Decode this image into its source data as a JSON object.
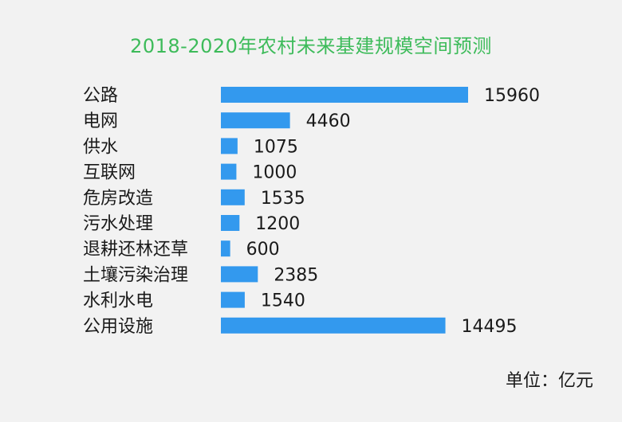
{
  "chart_data": {
    "type": "bar",
    "orientation": "horizontal",
    "title": "2018-2020年农村未来基建规模空间预测",
    "unit_note": "单位：亿元",
    "categories": [
      "公路",
      "电网",
      "供水",
      "互联网",
      "危房改造",
      "污水处理",
      "退耕还林还草",
      "土壤污染治理",
      "水利水电",
      "公用设施"
    ],
    "values": [
      15960,
      4460,
      1075,
      1000,
      1535,
      1200,
      600,
      2385,
      1540,
      14495
    ],
    "bar_color": "#3399ee",
    "title_color": "#3dbb5a",
    "grid": false,
    "legend": "none"
  }
}
